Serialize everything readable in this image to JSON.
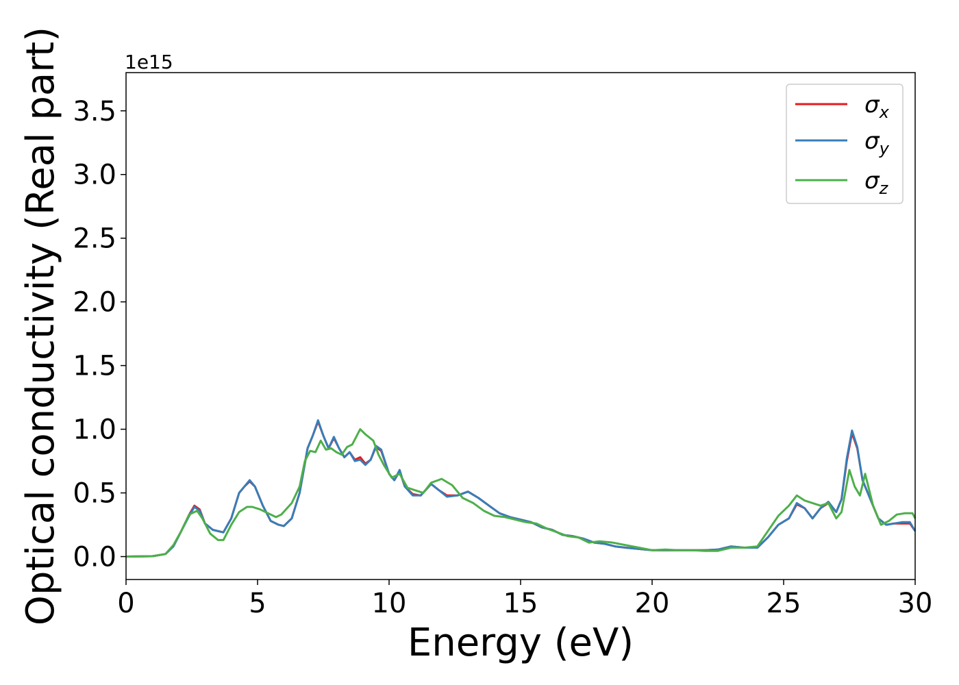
{
  "chart_data": {
    "type": "line",
    "xlabel": "Energy (eV)",
    "ylabel": "Optical conductivity (Real part)",
    "y_offset_label": "1e15",
    "xlim": [
      0,
      30
    ],
    "ylim": [
      -0.18,
      3.8
    ],
    "xticks": [
      0,
      5,
      10,
      15,
      20,
      25,
      30
    ],
    "xtick_labels": [
      "0",
      "5",
      "10",
      "15",
      "20",
      "25",
      "30"
    ],
    "yticks": [
      0.0,
      0.5,
      1.0,
      1.5,
      2.0,
      2.5,
      3.0,
      3.5
    ],
    "ytick_labels": [
      "0.0",
      "0.5",
      "1.0",
      "1.5",
      "2.0",
      "2.5",
      "3.0",
      "3.5"
    ],
    "grid": false,
    "legend_position": "top-right",
    "series": [
      {
        "name": "σx",
        "symbol": "σ",
        "subscript": "x",
        "color": "#e41a1c",
        "points": [
          [
            0,
            0
          ],
          [
            1,
            0.003
          ],
          [
            1.5,
            0.02
          ],
          [
            1.8,
            0.08
          ],
          [
            2.1,
            0.2
          ],
          [
            2.4,
            0.33
          ],
          [
            2.6,
            0.4
          ],
          [
            2.8,
            0.37
          ],
          [
            3.0,
            0.26
          ],
          [
            3.3,
            0.21
          ],
          [
            3.7,
            0.19
          ],
          [
            4.0,
            0.3
          ],
          [
            4.3,
            0.5
          ],
          [
            4.5,
            0.55
          ],
          [
            4.7,
            0.59
          ],
          [
            4.9,
            0.55
          ],
          [
            5.2,
            0.4
          ],
          [
            5.5,
            0.28
          ],
          [
            5.8,
            0.25
          ],
          [
            6.0,
            0.24
          ],
          [
            6.3,
            0.3
          ],
          [
            6.6,
            0.5
          ],
          [
            6.9,
            0.85
          ],
          [
            7.1,
            0.95
          ],
          [
            7.3,
            1.06
          ],
          [
            7.5,
            0.95
          ],
          [
            7.7,
            0.85
          ],
          [
            7.9,
            0.93
          ],
          [
            8.1,
            0.85
          ],
          [
            8.3,
            0.78
          ],
          [
            8.5,
            0.82
          ],
          [
            8.7,
            0.76
          ],
          [
            8.9,
            0.78
          ],
          [
            9.1,
            0.73
          ],
          [
            9.3,
            0.76
          ],
          [
            9.5,
            0.86
          ],
          [
            9.7,
            0.83
          ],
          [
            10.0,
            0.65
          ],
          [
            10.2,
            0.6
          ],
          [
            10.4,
            0.67
          ],
          [
            10.6,
            0.55
          ],
          [
            10.9,
            0.49
          ],
          [
            11.2,
            0.48
          ],
          [
            11.6,
            0.57
          ],
          [
            11.9,
            0.52
          ],
          [
            12.2,
            0.48
          ],
          [
            12.6,
            0.48
          ],
          [
            13.0,
            0.51
          ],
          [
            13.4,
            0.46
          ],
          [
            13.8,
            0.4
          ],
          [
            14.2,
            0.34
          ],
          [
            14.6,
            0.31
          ],
          [
            15.0,
            0.29
          ],
          [
            15.4,
            0.27
          ],
          [
            15.8,
            0.23
          ],
          [
            16.2,
            0.21
          ],
          [
            16.6,
            0.17
          ],
          [
            17.0,
            0.16
          ],
          [
            17.4,
            0.14
          ],
          [
            17.8,
            0.11
          ],
          [
            18.2,
            0.1
          ],
          [
            18.6,
            0.08
          ],
          [
            19.0,
            0.07
          ],
          [
            19.5,
            0.06
          ],
          [
            20.0,
            0.05
          ],
          [
            20.5,
            0.05
          ],
          [
            21,
            0.05
          ],
          [
            21.5,
            0.05
          ],
          [
            22,
            0.05
          ],
          [
            22.5,
            0.055
          ],
          [
            23.0,
            0.08
          ],
          [
            23.5,
            0.07
          ],
          [
            24.0,
            0.07
          ],
          [
            24.4,
            0.15
          ],
          [
            24.8,
            0.25
          ],
          [
            25.2,
            0.3
          ],
          [
            25.5,
            0.41
          ],
          [
            25.8,
            0.38
          ],
          [
            26.1,
            0.3
          ],
          [
            26.4,
            0.38
          ],
          [
            26.7,
            0.42
          ],
          [
            27.0,
            0.35
          ],
          [
            27.2,
            0.45
          ],
          [
            27.4,
            0.75
          ],
          [
            27.6,
            0.97
          ],
          [
            27.8,
            0.85
          ],
          [
            28.0,
            0.6
          ],
          [
            28.3,
            0.45
          ],
          [
            28.6,
            0.3
          ],
          [
            28.9,
            0.25
          ],
          [
            29.2,
            0.26
          ],
          [
            29.5,
            0.26
          ],
          [
            29.8,
            0.26
          ],
          [
            30,
            0.2
          ]
        ]
      },
      {
        "name": "σy",
        "symbol": "σ",
        "subscript": "y",
        "color": "#377eb8",
        "points": [
          [
            0,
            0
          ],
          [
            1,
            0.003
          ],
          [
            1.5,
            0.02
          ],
          [
            1.8,
            0.08
          ],
          [
            2.1,
            0.2
          ],
          [
            2.4,
            0.32
          ],
          [
            2.6,
            0.39
          ],
          [
            2.8,
            0.36
          ],
          [
            3.0,
            0.26
          ],
          [
            3.3,
            0.21
          ],
          [
            3.7,
            0.19
          ],
          [
            4.0,
            0.3
          ],
          [
            4.3,
            0.5
          ],
          [
            4.5,
            0.55
          ],
          [
            4.7,
            0.6
          ],
          [
            4.9,
            0.55
          ],
          [
            5.2,
            0.4
          ],
          [
            5.5,
            0.28
          ],
          [
            5.8,
            0.25
          ],
          [
            6.0,
            0.24
          ],
          [
            6.3,
            0.3
          ],
          [
            6.6,
            0.5
          ],
          [
            6.9,
            0.85
          ],
          [
            7.1,
            0.95
          ],
          [
            7.3,
            1.07
          ],
          [
            7.5,
            0.95
          ],
          [
            7.7,
            0.85
          ],
          [
            7.9,
            0.94
          ],
          [
            8.1,
            0.85
          ],
          [
            8.3,
            0.78
          ],
          [
            8.5,
            0.82
          ],
          [
            8.7,
            0.75
          ],
          [
            8.9,
            0.76
          ],
          [
            9.1,
            0.72
          ],
          [
            9.3,
            0.76
          ],
          [
            9.5,
            0.87
          ],
          [
            9.7,
            0.84
          ],
          [
            10.0,
            0.65
          ],
          [
            10.2,
            0.6
          ],
          [
            10.4,
            0.68
          ],
          [
            10.6,
            0.55
          ],
          [
            10.9,
            0.48
          ],
          [
            11.2,
            0.48
          ],
          [
            11.6,
            0.57
          ],
          [
            11.9,
            0.52
          ],
          [
            12.2,
            0.47
          ],
          [
            12.6,
            0.48
          ],
          [
            13.0,
            0.51
          ],
          [
            13.4,
            0.46
          ],
          [
            13.8,
            0.4
          ],
          [
            14.2,
            0.34
          ],
          [
            14.6,
            0.31
          ],
          [
            15.0,
            0.29
          ],
          [
            15.4,
            0.27
          ],
          [
            15.8,
            0.23
          ],
          [
            16.2,
            0.21
          ],
          [
            16.6,
            0.17
          ],
          [
            17.0,
            0.16
          ],
          [
            17.4,
            0.14
          ],
          [
            17.8,
            0.11
          ],
          [
            18.2,
            0.1
          ],
          [
            18.6,
            0.08
          ],
          [
            19.0,
            0.07
          ],
          [
            19.5,
            0.06
          ],
          [
            20.0,
            0.05
          ],
          [
            20.5,
            0.05
          ],
          [
            21,
            0.05
          ],
          [
            21.5,
            0.05
          ],
          [
            22,
            0.05
          ],
          [
            22.5,
            0.055
          ],
          [
            23.0,
            0.08
          ],
          [
            23.5,
            0.07
          ],
          [
            24.0,
            0.07
          ],
          [
            24.4,
            0.15
          ],
          [
            24.8,
            0.25
          ],
          [
            25.2,
            0.3
          ],
          [
            25.5,
            0.42
          ],
          [
            25.8,
            0.38
          ],
          [
            26.1,
            0.3
          ],
          [
            26.4,
            0.38
          ],
          [
            26.7,
            0.43
          ],
          [
            27.0,
            0.35
          ],
          [
            27.2,
            0.45
          ],
          [
            27.4,
            0.77
          ],
          [
            27.6,
            0.99
          ],
          [
            27.8,
            0.86
          ],
          [
            28.0,
            0.6
          ],
          [
            28.3,
            0.45
          ],
          [
            28.6,
            0.3
          ],
          [
            28.9,
            0.25
          ],
          [
            29.2,
            0.26
          ],
          [
            29.5,
            0.27
          ],
          [
            29.8,
            0.27
          ],
          [
            30,
            0.2
          ]
        ]
      },
      {
        "name": "σz",
        "symbol": "σ",
        "subscript": "z",
        "color": "#4daf4a",
        "points": [
          [
            0,
            0
          ],
          [
            1,
            0.003
          ],
          [
            1.5,
            0.02
          ],
          [
            1.8,
            0.09
          ],
          [
            2.1,
            0.2
          ],
          [
            2.4,
            0.33
          ],
          [
            2.7,
            0.36
          ],
          [
            2.9,
            0.3
          ],
          [
            3.2,
            0.18
          ],
          [
            3.5,
            0.13
          ],
          [
            3.7,
            0.13
          ],
          [
            4.0,
            0.25
          ],
          [
            4.3,
            0.35
          ],
          [
            4.6,
            0.39
          ],
          [
            4.8,
            0.39
          ],
          [
            5.1,
            0.37
          ],
          [
            5.4,
            0.34
          ],
          [
            5.7,
            0.31
          ],
          [
            5.9,
            0.33
          ],
          [
            6.3,
            0.42
          ],
          [
            6.6,
            0.55
          ],
          [
            6.8,
            0.75
          ],
          [
            7.0,
            0.83
          ],
          [
            7.2,
            0.82
          ],
          [
            7.4,
            0.91
          ],
          [
            7.6,
            0.84
          ],
          [
            7.8,
            0.85
          ],
          [
            8.0,
            0.82
          ],
          [
            8.2,
            0.8
          ],
          [
            8.4,
            0.86
          ],
          [
            8.6,
            0.88
          ],
          [
            8.9,
            1.0
          ],
          [
            9.1,
            0.96
          ],
          [
            9.4,
            0.91
          ],
          [
            9.6,
            0.8
          ],
          [
            9.8,
            0.72
          ],
          [
            10.1,
            0.62
          ],
          [
            10.4,
            0.65
          ],
          [
            10.7,
            0.54
          ],
          [
            11.0,
            0.52
          ],
          [
            11.3,
            0.5
          ],
          [
            11.6,
            0.58
          ],
          [
            12.0,
            0.61
          ],
          [
            12.4,
            0.56
          ],
          [
            12.8,
            0.46
          ],
          [
            13.2,
            0.42
          ],
          [
            13.6,
            0.36
          ],
          [
            14.0,
            0.32
          ],
          [
            14.4,
            0.31
          ],
          [
            14.8,
            0.29
          ],
          [
            15.2,
            0.27
          ],
          [
            15.6,
            0.26
          ],
          [
            16.0,
            0.22
          ],
          [
            16.4,
            0.19
          ],
          [
            16.8,
            0.16
          ],
          [
            17.2,
            0.15
          ],
          [
            17.6,
            0.11
          ],
          [
            18.0,
            0.12
          ],
          [
            18.5,
            0.11
          ],
          [
            19.0,
            0.09
          ],
          [
            19.5,
            0.07
          ],
          [
            20.0,
            0.05
          ],
          [
            20.5,
            0.055
          ],
          [
            21,
            0.05
          ],
          [
            21.5,
            0.05
          ],
          [
            22,
            0.045
          ],
          [
            22.5,
            0.045
          ],
          [
            23.0,
            0.07
          ],
          [
            23.5,
            0.07
          ],
          [
            24.0,
            0.08
          ],
          [
            24.4,
            0.2
          ],
          [
            24.8,
            0.32
          ],
          [
            25.2,
            0.4
          ],
          [
            25.5,
            0.48
          ],
          [
            25.8,
            0.44
          ],
          [
            26.1,
            0.42
          ],
          [
            26.4,
            0.4
          ],
          [
            26.7,
            0.42
          ],
          [
            27.0,
            0.3
          ],
          [
            27.2,
            0.35
          ],
          [
            27.5,
            0.68
          ],
          [
            27.7,
            0.55
          ],
          [
            27.9,
            0.48
          ],
          [
            28.1,
            0.65
          ],
          [
            28.4,
            0.4
          ],
          [
            28.7,
            0.25
          ],
          [
            29.0,
            0.28
          ],
          [
            29.3,
            0.33
          ],
          [
            29.6,
            0.34
          ],
          [
            29.9,
            0.34
          ],
          [
            30,
            0.3
          ]
        ]
      }
    ]
  }
}
